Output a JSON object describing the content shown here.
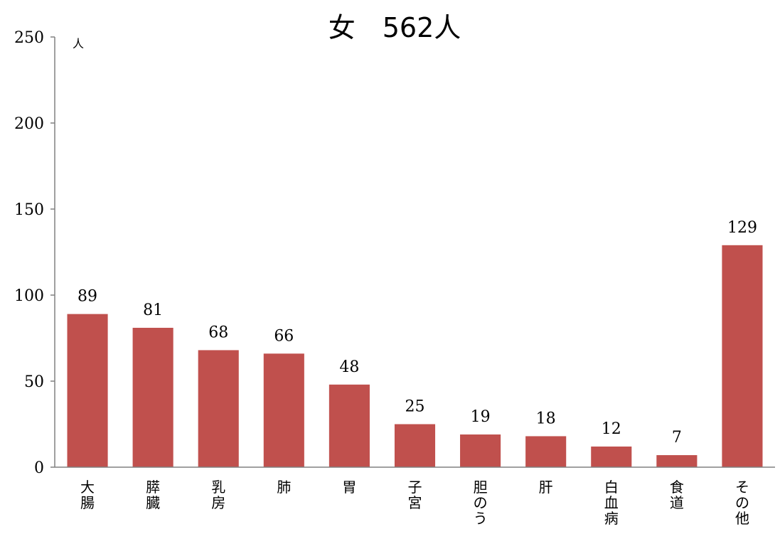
{
  "chart_data": {
    "type": "bar",
    "title": "女　562人",
    "ylabel": "人",
    "xlabel": "",
    "ylim": [
      0,
      250
    ],
    "yticks": [
      0,
      50,
      100,
      150,
      200,
      250
    ],
    "grid": false,
    "categories": [
      "大腸",
      "膵臓",
      "乳房",
      "肺",
      "胃",
      "子宮",
      "胆のう",
      "肝",
      "白血病",
      "食道",
      "その他"
    ],
    "values": [
      89,
      81,
      68,
      66,
      48,
      25,
      19,
      18,
      12,
      7,
      129
    ],
    "colors": {
      "bar": "#c0504d",
      "axis": "#808080"
    }
  }
}
